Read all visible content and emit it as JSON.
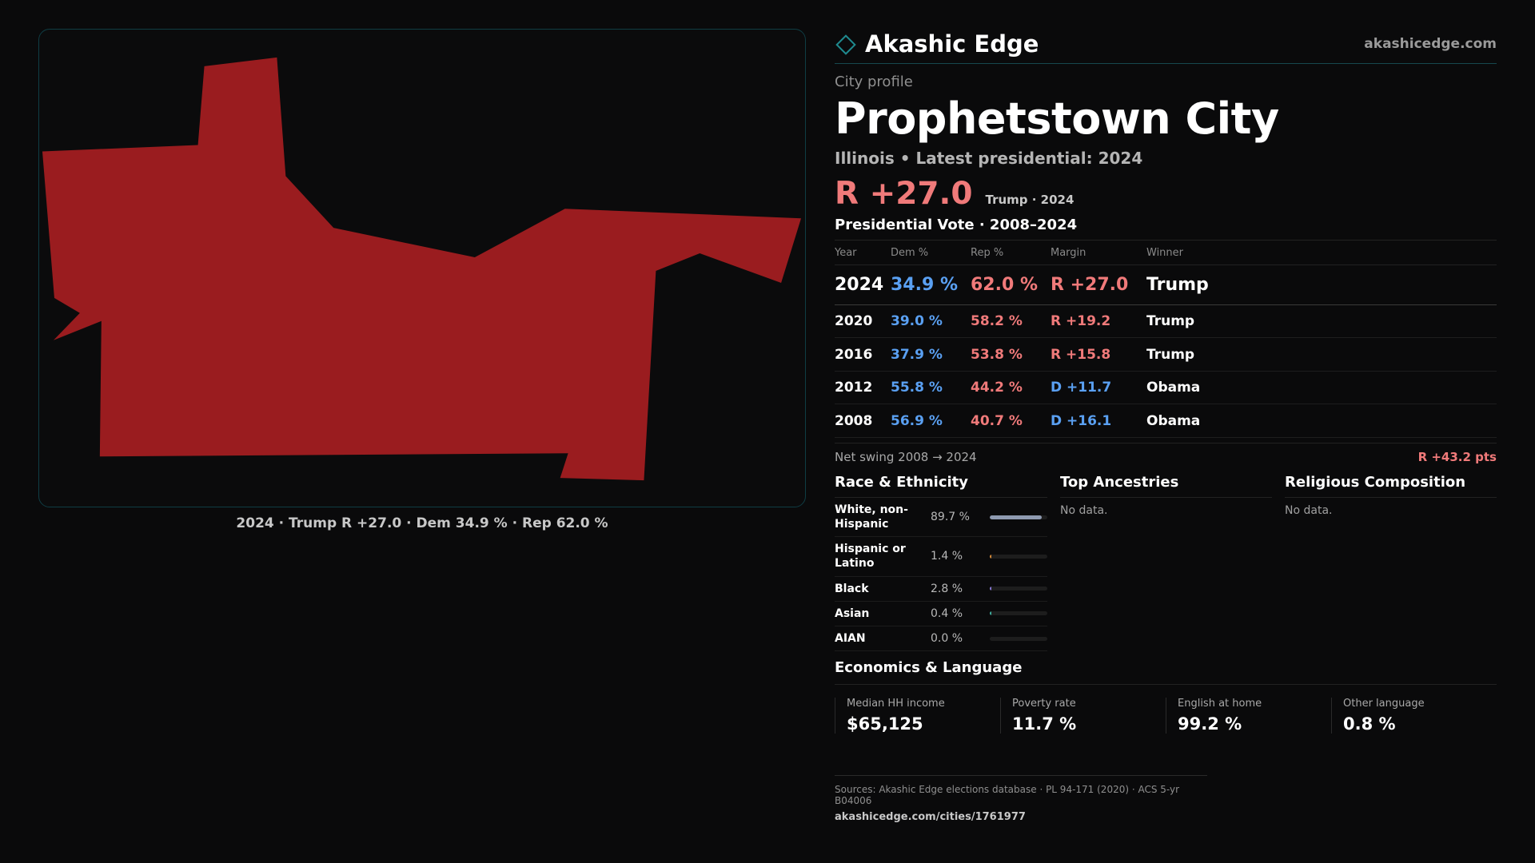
{
  "map": {
    "caption": "2024 · Trump R +27.0 · Dem 34.9 % · Rep 62.0 %",
    "fill_color": "#9a1c1f",
    "border_color": "#0f3d44"
  },
  "brand": {
    "name": "Akashic Edge",
    "url": "akashicedge.com",
    "logo_icon": "diamond-outline-icon"
  },
  "profile": {
    "kicker": "City profile",
    "title": "Prophetstown City",
    "subline": "Illinois • Latest presidential: 2024",
    "headline_margin": "R +27.0",
    "headline_note": "Trump · 2024"
  },
  "presidential": {
    "title": "Presidential Vote · 2008–2024",
    "columns": [
      "Year",
      "Dem %",
      "Rep %",
      "Margin",
      "Winner"
    ],
    "rows": [
      {
        "year": "2024",
        "dem": "34.9 %",
        "rep": "62.0 %",
        "margin": "R +27.0",
        "winner": "Trump",
        "party": "R"
      },
      {
        "year": "2020",
        "dem": "39.0 %",
        "rep": "58.2 %",
        "margin": "R +19.2",
        "winner": "Trump",
        "party": "R"
      },
      {
        "year": "2016",
        "dem": "37.9 %",
        "rep": "53.8 %",
        "margin": "R +15.8",
        "winner": "Trump",
        "party": "R"
      },
      {
        "year": "2012",
        "dem": "55.8 %",
        "rep": "44.2 %",
        "margin": "D +11.7",
        "winner": "Obama",
        "party": "D"
      },
      {
        "year": "2008",
        "dem": "56.9 %",
        "rep": "40.7 %",
        "margin": "D +16.1",
        "winner": "Obama",
        "party": "D"
      }
    ],
    "swing_label": "Net swing 2008 → 2024",
    "swing_value": "R +43.2 pts"
  },
  "race": {
    "title": "Race & Ethnicity",
    "rows": [
      {
        "name": "White, non-Hispanic",
        "pct": "89.7 %",
        "value": 89.7,
        "color": "#8e9ab0"
      },
      {
        "name": "Hispanic or Latino",
        "pct": "1.4 %",
        "value": 1.4,
        "color": "#d98c3a"
      },
      {
        "name": "Black",
        "pct": "2.8 %",
        "value": 2.8,
        "color": "#8a7ad8"
      },
      {
        "name": "Asian",
        "pct": "0.4 %",
        "value": 0.4,
        "color": "#3fb0a0"
      },
      {
        "name": "AIAN",
        "pct": "0.0 %",
        "value": 0.0,
        "color": "#b0b0b0"
      }
    ]
  },
  "ancestries": {
    "title": "Top Ancestries",
    "empty": "No data."
  },
  "religion": {
    "title": "Religious Composition",
    "empty": "No data."
  },
  "economics": {
    "title": "Economics & Language",
    "cells": [
      {
        "label": "Median HH income",
        "value": "$65,125"
      },
      {
        "label": "Poverty rate",
        "value": "11.7 %"
      },
      {
        "label": "English at home",
        "value": "99.2 %"
      },
      {
        "label": "Other language",
        "value": "0.8 %"
      }
    ]
  },
  "sources": {
    "line": "Sources: Akashic Edge elections database · PL 94-171 (2020) · ACS 5-yr B04006",
    "url": "akashicedge.com/cities/1761977"
  }
}
